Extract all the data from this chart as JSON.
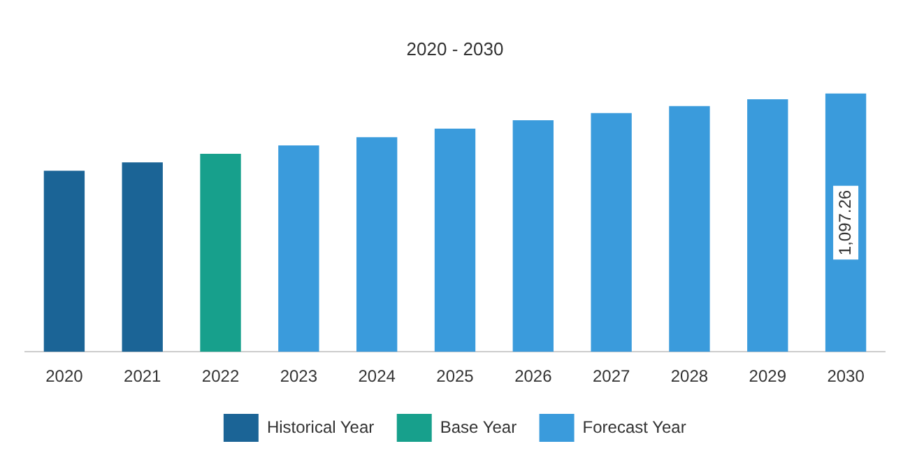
{
  "chart_data": {
    "type": "bar",
    "title": "2020 - 2030",
    "categories": [
      "2020",
      "2021",
      "2022",
      "2023",
      "2024",
      "2025",
      "2026",
      "2027",
      "2028",
      "2029",
      "2030"
    ],
    "stacked": true,
    "legend": "bottom",
    "grid": false,
    "series": [
      {
        "name": "Historical Year",
        "color": "#1b6496",
        "values": [
          769,
          805,
          null,
          null,
          null,
          null,
          null,
          null,
          null,
          null,
          null
        ]
      },
      {
        "name": "Base Year",
        "color": "#17a08c",
        "values": [
          null,
          null,
          841,
          null,
          null,
          null,
          null,
          null,
          null,
          null,
          null
        ]
      },
      {
        "name": "Forecast Year",
        "color": "#3a9bdc",
        "values": [
          null,
          null,
          null,
          877,
          912,
          948,
          984,
          1014,
          1044,
          1073,
          1097.26
        ],
        "value_labels": [
          null,
          null,
          null,
          null,
          null,
          null,
          null,
          null,
          null,
          null,
          "1,097.26"
        ]
      }
    ]
  }
}
